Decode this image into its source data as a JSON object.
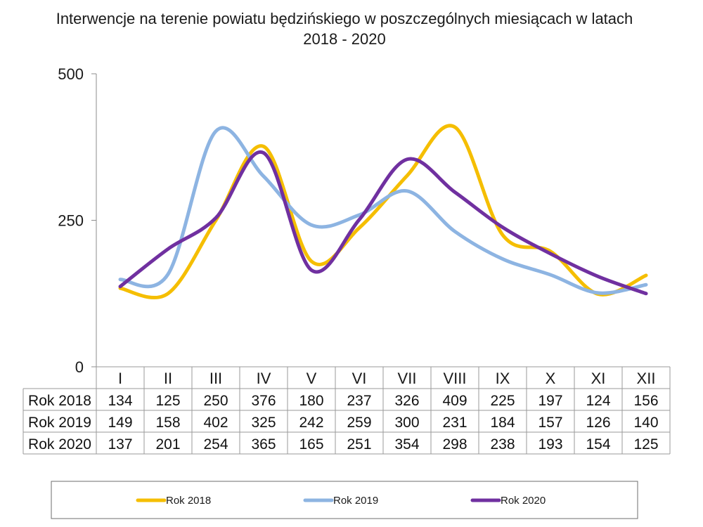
{
  "chart_data": {
    "type": "line",
    "title": "Interwencje na terenie powiatu będzińskiego w poszczególnych miesiącach w latach 2018 - 2020",
    "title_lines": [
      "Interwencje na terenie powiatu będzińskiego w poszczególnych miesiącach w latach",
      "2018 - 2020"
    ],
    "categories": [
      "I",
      "II",
      "III",
      "IV",
      "V",
      "VI",
      "VII",
      "VIII",
      "IX",
      "X",
      "XI",
      "XII"
    ],
    "ylim": [
      0,
      500
    ],
    "yticks": [
      0,
      250,
      500
    ],
    "smooth": true,
    "grid": false,
    "legend_position": "bottom",
    "data_table": true,
    "series": [
      {
        "name": "Rok 2018",
        "color": "#F5BE00",
        "values": [
          134,
          125,
          250,
          376,
          180,
          237,
          326,
          409,
          225,
          197,
          124,
          156
        ]
      },
      {
        "name": "Rok 2019",
        "color": "#8DB4E2",
        "values": [
          149,
          158,
          402,
          325,
          242,
          259,
          300,
          231,
          184,
          157,
          126,
          140
        ]
      },
      {
        "name": "Rok 2020",
        "color": "#7030A0",
        "values": [
          137,
          201,
          254,
          365,
          165,
          251,
          354,
          298,
          238,
          193,
          154,
          125
        ]
      }
    ]
  }
}
